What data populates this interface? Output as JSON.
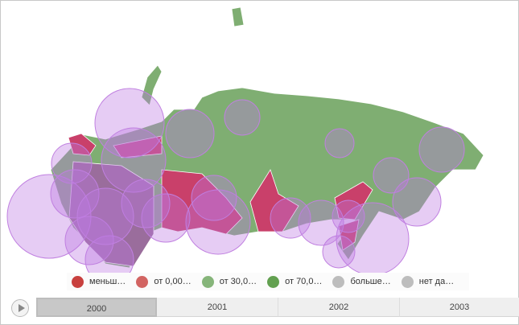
{
  "legend": [
    {
      "label": "меньш…",
      "color": "#c8403e"
    },
    {
      "label": "от 0,00…",
      "color": "#d26462"
    },
    {
      "label": "от 30,0…",
      "color": "#86b57a"
    },
    {
      "label": "от 70,0…",
      "color": "#62a050"
    },
    {
      "label": "больше…",
      "color": "#bdbdbd"
    },
    {
      "label": "нет да…",
      "color": "#bdbdbd"
    }
  ],
  "timeline": {
    "play_icon": "play-icon",
    "years": [
      "2000",
      "2001",
      "2002",
      "2003"
    ],
    "selected": "2000"
  },
  "colors": {
    "region": "#7fae72",
    "highlight": "#c9406a",
    "bubble": "#c889e6"
  }
}
